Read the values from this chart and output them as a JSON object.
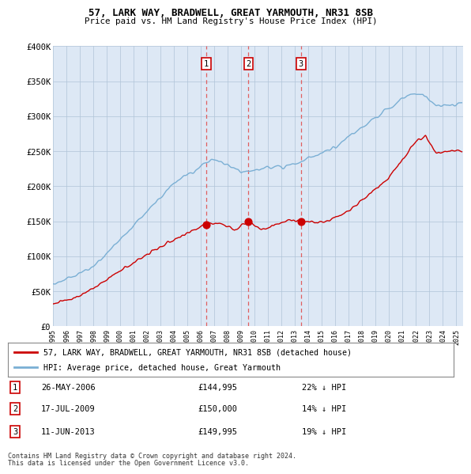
{
  "title": "57, LARK WAY, BRADWELL, GREAT YARMOUTH, NR31 8SB",
  "subtitle": "Price paid vs. HM Land Registry's House Price Index (HPI)",
  "background_color": "#ffffff",
  "plot_bg_color": "#dde8f5",
  "grid_color": "#b0c4d8",
  "hpi_color": "#7aafd4",
  "price_color": "#cc0000",
  "vline_color": "#e06060",
  "transactions": [
    {
      "label": "1",
      "date_str": "26-MAY-2006",
      "price": 144995,
      "price_str": "£144,995",
      "pct": "22%",
      "x": 2006.4
    },
    {
      "label": "2",
      "date_str": "17-JUL-2009",
      "price": 150000,
      "price_str": "£150,000",
      "pct": "14%",
      "x": 2009.54
    },
    {
      "label": "3",
      "date_str": "11-JUN-2013",
      "price": 149995,
      "price_str": "£149,995",
      "pct": "19%",
      "x": 2013.44
    }
  ],
  "legend_label_red": "57, LARK WAY, BRADWELL, GREAT YARMOUTH, NR31 8SB (detached house)",
  "legend_label_blue": "HPI: Average price, detached house, Great Yarmouth",
  "footnote1": "Contains HM Land Registry data © Crown copyright and database right 2024.",
  "footnote2": "This data is licensed under the Open Government Licence v3.0.",
  "xmin": 1995.0,
  "xmax": 2025.5,
  "ymin": 0,
  "ymax": 400000,
  "yticks": [
    0,
    50000,
    100000,
    150000,
    200000,
    250000,
    300000,
    350000,
    400000
  ],
  "ytick_labels": [
    "£0",
    "£50K",
    "£100K",
    "£150K",
    "£200K",
    "£250K",
    "£300K",
    "£350K",
    "£400K"
  ],
  "xticks": [
    1995,
    1996,
    1997,
    1998,
    1999,
    2000,
    2001,
    2002,
    2003,
    2004,
    2005,
    2006,
    2007,
    2008,
    2009,
    2010,
    2011,
    2012,
    2013,
    2014,
    2015,
    2016,
    2017,
    2018,
    2019,
    2020,
    2021,
    2022,
    2023,
    2024,
    2025
  ]
}
